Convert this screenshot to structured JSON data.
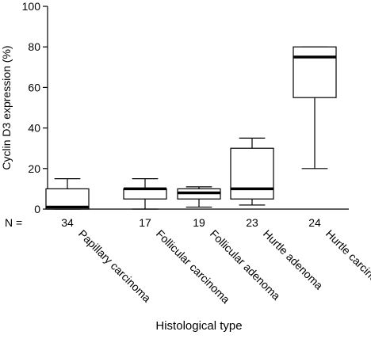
{
  "chart_data": {
    "type": "box",
    "xlabel": "Histological type",
    "ylabel": "Cyclin D3 expression (%)",
    "ylim": [
      0,
      100
    ],
    "yticks": [
      0,
      20,
      40,
      60,
      80,
      100
    ],
    "n_label": "N =",
    "grid": false,
    "categories": [
      "Papillary carcinoma",
      "Follicular carcinoma",
      "Follicular adenoma",
      "Hurtle adenoma",
      "Hurtle carcinoma"
    ],
    "n": [
      "34",
      "17",
      "19",
      "23",
      "24"
    ],
    "boxes": [
      {
        "min": 0,
        "q1": 0,
        "median": 1,
        "q3": 10,
        "max": 15
      },
      {
        "min": 0,
        "q1": 5,
        "median": 10,
        "q3": 10,
        "max": 15
      },
      {
        "min": 1,
        "q1": 5,
        "median": 8,
        "q3": 10,
        "max": 11
      },
      {
        "min": 2,
        "q1": 5,
        "median": 10,
        "q3": 30,
        "max": 35
      },
      {
        "min": 20,
        "q1": 55,
        "median": 75,
        "q3": 80,
        "max": 80
      }
    ]
  }
}
